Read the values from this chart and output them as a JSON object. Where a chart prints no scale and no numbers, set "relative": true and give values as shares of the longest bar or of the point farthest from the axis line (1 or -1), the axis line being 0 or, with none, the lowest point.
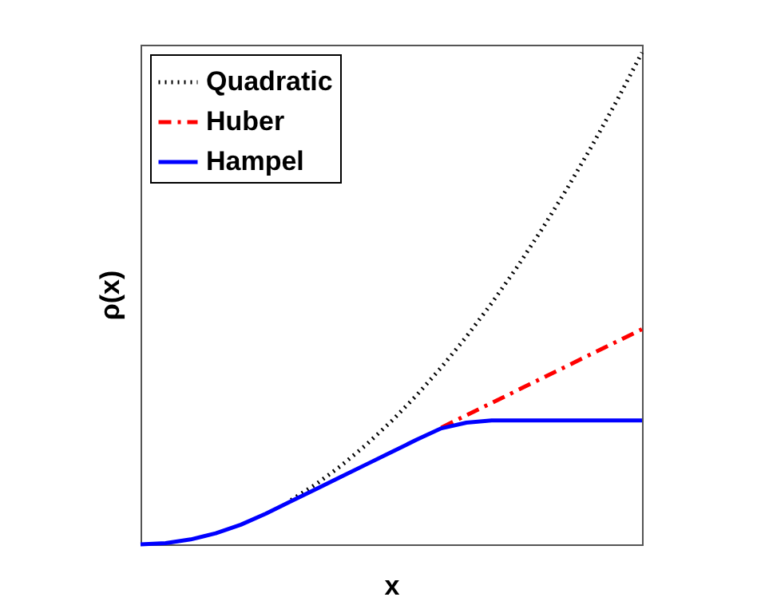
{
  "chart_data": {
    "type": "line",
    "xlabel": "x",
    "ylabel": "ρ(x)",
    "relative": true,
    "legend": "top left",
    "categories": [
      null,
      null,
      null,
      null,
      null,
      null,
      null,
      null,
      null,
      null,
      null,
      null,
      null,
      null,
      null,
      null,
      null,
      null,
      null,
      null,
      null
    ],
    "series": [
      {
        "name": "Quadratic",
        "color": "#000000",
        "line_style": "dotted",
        "values": [
          null,
          null,
          null,
          null,
          null,
          null,
          0.09,
          0.1225,
          0.16,
          0.2025,
          0.25,
          0.3025,
          0.36,
          0.4225,
          0.49,
          0.5625,
          0.64,
          0.7225,
          0.81,
          0.9025,
          1
        ]
      },
      {
        "name": "Huber",
        "color": "#ff0000",
        "line_style": "dashed",
        "values": [
          null,
          null,
          null,
          null,
          null,
          null,
          null,
          null,
          null,
          null,
          null,
          null,
          0.2375,
          0.2625,
          0.2875,
          0.3125,
          0.3375,
          0.3625,
          0.3875,
          0.4125,
          0.4375
        ]
      },
      {
        "name": "Hampel",
        "color": "#0000ff",
        "line_style": "solid",
        "values": [
          0,
          0.0025,
          0.01,
          0.0225,
          0.04,
          0.0625,
          0.0875,
          0.1125,
          0.1375,
          0.1625,
          0.1875,
          0.2125,
          0.236,
          0.2475,
          0.252,
          0.252,
          0.252,
          0.252,
          0.252,
          0.252,
          0.252
        ]
      }
    ]
  }
}
